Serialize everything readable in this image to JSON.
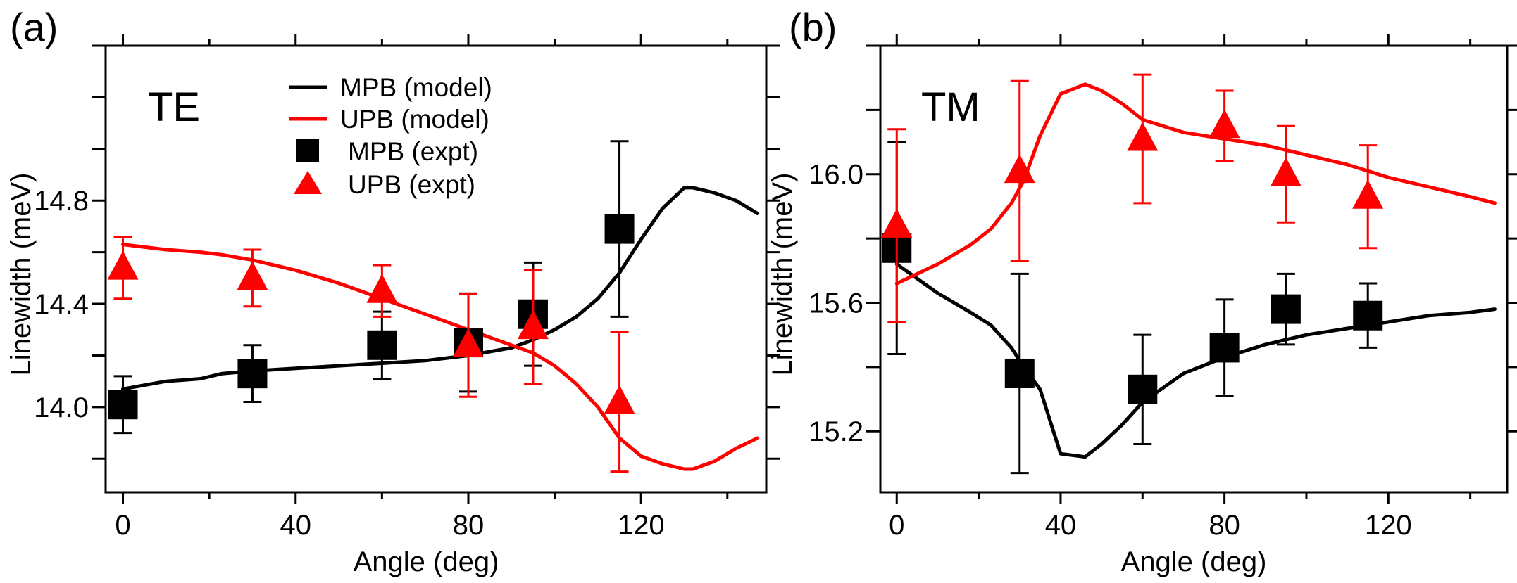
{
  "chart_data": [
    {
      "type": "line",
      "panel_label": "(a)",
      "annotation": "TE",
      "xlabel": "Angle (deg)",
      "ylabel": "Linewidth (meV)",
      "xlim": [
        -4,
        149
      ],
      "ylim": [
        13.67,
        15.4
      ],
      "xticks": [
        0,
        40,
        80,
        120
      ],
      "xtick_labels": [
        "0",
        "40",
        "80",
        "120"
      ],
      "xminor": [
        20,
        60,
        100,
        140
      ],
      "yticks": [
        14.0,
        14.4,
        14.8
      ],
      "ytick_labels": [
        "14.0",
        "14.4",
        "14.8"
      ],
      "yminor": [
        13.8,
        14.2,
        14.6,
        15.0,
        15.2,
        15.4
      ],
      "grid": false,
      "legend_position": "top-center",
      "legend": [
        {
          "label": "MPB (model)",
          "kind": "line",
          "color": "#000000"
        },
        {
          "label": "UPB (model)",
          "kind": "line",
          "color": "#ff0000"
        },
        {
          "label": "MPB (expt)",
          "kind": "square",
          "color": "#000000"
        },
        {
          "label": "UPB (expt)",
          "kind": "triangle",
          "color": "#ff0000"
        }
      ],
      "series": [
        {
          "name": "MPB (model)",
          "kind": "line",
          "color": "#000000",
          "x": [
            0,
            10,
            18,
            23,
            30,
            40,
            50,
            60,
            70,
            80,
            90,
            95,
            100,
            105,
            110,
            115,
            120,
            125,
            130,
            132,
            137,
            142,
            147
          ],
          "y": [
            14.07,
            14.1,
            14.11,
            14.13,
            14.14,
            14.15,
            14.16,
            14.17,
            14.18,
            14.2,
            14.23,
            14.26,
            14.3,
            14.35,
            14.42,
            14.52,
            14.65,
            14.77,
            14.85,
            14.85,
            14.83,
            14.8,
            14.75
          ]
        },
        {
          "name": "UPB (model)",
          "kind": "line",
          "color": "#ff0000",
          "x": [
            0,
            10,
            18,
            23,
            30,
            40,
            50,
            60,
            70,
            80,
            90,
            95,
            100,
            105,
            110,
            115,
            120,
            125,
            130,
            132,
            137,
            142,
            147
          ],
          "y": [
            14.63,
            14.61,
            14.6,
            14.59,
            14.57,
            14.53,
            14.48,
            14.42,
            14.36,
            14.3,
            14.24,
            14.21,
            14.16,
            14.09,
            14.0,
            13.88,
            13.81,
            13.78,
            13.76,
            13.76,
            13.79,
            13.84,
            13.88
          ]
        },
        {
          "name": "MPB (expt)",
          "kind": "square",
          "color": "#000000",
          "x": [
            0,
            30,
            60,
            80,
            95,
            115
          ],
          "y": [
            14.01,
            14.13,
            14.24,
            14.25,
            14.36,
            14.69
          ],
          "err": [
            0.11,
            0.11,
            0.13,
            0.19,
            0.2,
            0.34
          ]
        },
        {
          "name": "UPB (expt)",
          "kind": "triangle",
          "color": "#ff0000",
          "x": [
            0,
            30,
            60,
            80,
            95,
            115
          ],
          "y": [
            14.54,
            14.5,
            14.45,
            14.24,
            14.31,
            14.02
          ],
          "err": [
            0.12,
            0.11,
            0.1,
            0.2,
            0.22,
            0.27
          ]
        }
      ]
    },
    {
      "type": "line",
      "panel_label": "(b)",
      "annotation": "TM",
      "xlabel": "Angle (deg)",
      "ylabel": "Linewidth (meV)",
      "xlim": [
        -4,
        149
      ],
      "ylim": [
        15.01,
        16.4
      ],
      "xticks": [
        0,
        40,
        80,
        120
      ],
      "xtick_labels": [
        "0",
        "40",
        "80",
        "120"
      ],
      "xminor": [
        20,
        60,
        100,
        140
      ],
      "yticks": [
        15.2,
        15.6,
        16.0
      ],
      "ytick_labels": [
        "15.2",
        "15.6",
        "16.0"
      ],
      "yminor": [
        15.4,
        15.8,
        16.2,
        16.4
      ],
      "grid": false,
      "legend_position": "none",
      "series": [
        {
          "name": "MPB (model)",
          "kind": "line",
          "color": "#000000",
          "x": [
            0,
            10,
            18,
            23,
            28,
            31,
            35,
            40,
            46,
            50,
            55,
            60,
            70,
            80,
            90,
            100,
            110,
            120,
            130,
            140,
            146
          ],
          "y": [
            15.72,
            15.63,
            15.57,
            15.53,
            15.46,
            15.4,
            15.33,
            15.13,
            15.12,
            15.16,
            15.22,
            15.29,
            15.38,
            15.43,
            15.47,
            15.5,
            15.52,
            15.54,
            15.56,
            15.57,
            15.58
          ]
        },
        {
          "name": "UPB (model)",
          "kind": "line",
          "color": "#ff0000",
          "x": [
            0,
            10,
            18,
            23,
            28,
            31,
            35,
            40,
            46,
            50,
            55,
            60,
            70,
            80,
            90,
            100,
            110,
            120,
            130,
            140,
            146
          ],
          "y": [
            15.66,
            15.72,
            15.78,
            15.83,
            15.91,
            15.98,
            16.12,
            16.25,
            16.28,
            16.26,
            16.22,
            16.17,
            16.13,
            16.11,
            16.09,
            16.06,
            16.03,
            15.99,
            15.96,
            15.93,
            15.91
          ]
        },
        {
          "name": "MPB (expt)",
          "kind": "square",
          "color": "#000000",
          "x": [
            0,
            30,
            60,
            80,
            95,
            115
          ],
          "y": [
            15.77,
            15.38,
            15.33,
            15.46,
            15.58,
            15.56
          ],
          "err": [
            0.33,
            0.31,
            0.17,
            0.15,
            0.11,
            0.1
          ]
        },
        {
          "name": "UPB (expt)",
          "kind": "triangle",
          "color": "#ff0000",
          "x": [
            0,
            30,
            60,
            80,
            95,
            115
          ],
          "y": [
            15.84,
            16.01,
            16.11,
            16.15,
            16.0,
            15.93
          ],
          "err": [
            0.3,
            0.28,
            0.2,
            0.11,
            0.15,
            0.16
          ]
        }
      ]
    }
  ]
}
